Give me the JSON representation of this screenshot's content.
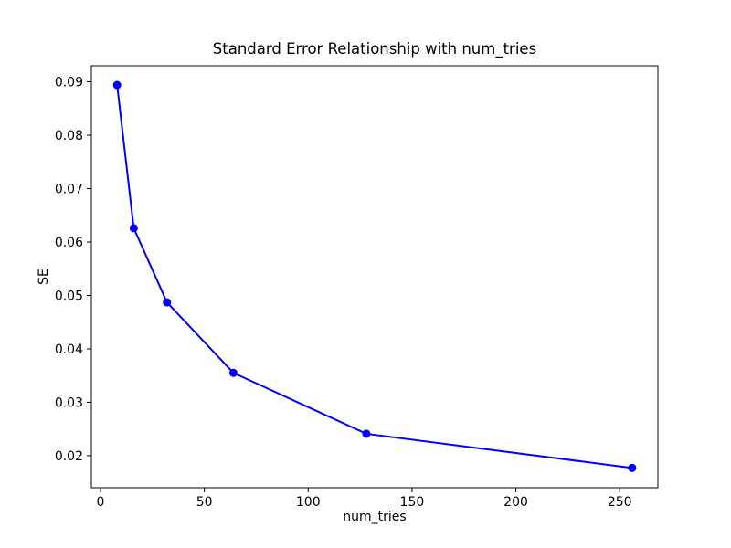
{
  "figure": {
    "background": "#ffffff"
  },
  "chart_data": {
    "type": "line",
    "title": "Standard Error Relationship with num_tries",
    "xlabel": "num_tries",
    "ylabel": "SE",
    "x": [
      8,
      16,
      32,
      64,
      128,
      256
    ],
    "y": [
      0.0894,
      0.0626,
      0.0487,
      0.0355,
      0.0241,
      0.0177
    ],
    "xlim": [
      -4.4,
      268.4
    ],
    "ylim": [
      0.014,
      0.093
    ],
    "xticks": [
      0,
      50,
      100,
      150,
      200,
      250
    ],
    "yticks": [
      0.02,
      0.03,
      0.04,
      0.05,
      0.06,
      0.07,
      0.08,
      0.09
    ],
    "ytick_decimals": 2,
    "line_color": "#0000ff",
    "marker": "o",
    "marker_color": "#0000ff",
    "axis_color": "#000000",
    "grid": false,
    "legend_position": "none"
  }
}
